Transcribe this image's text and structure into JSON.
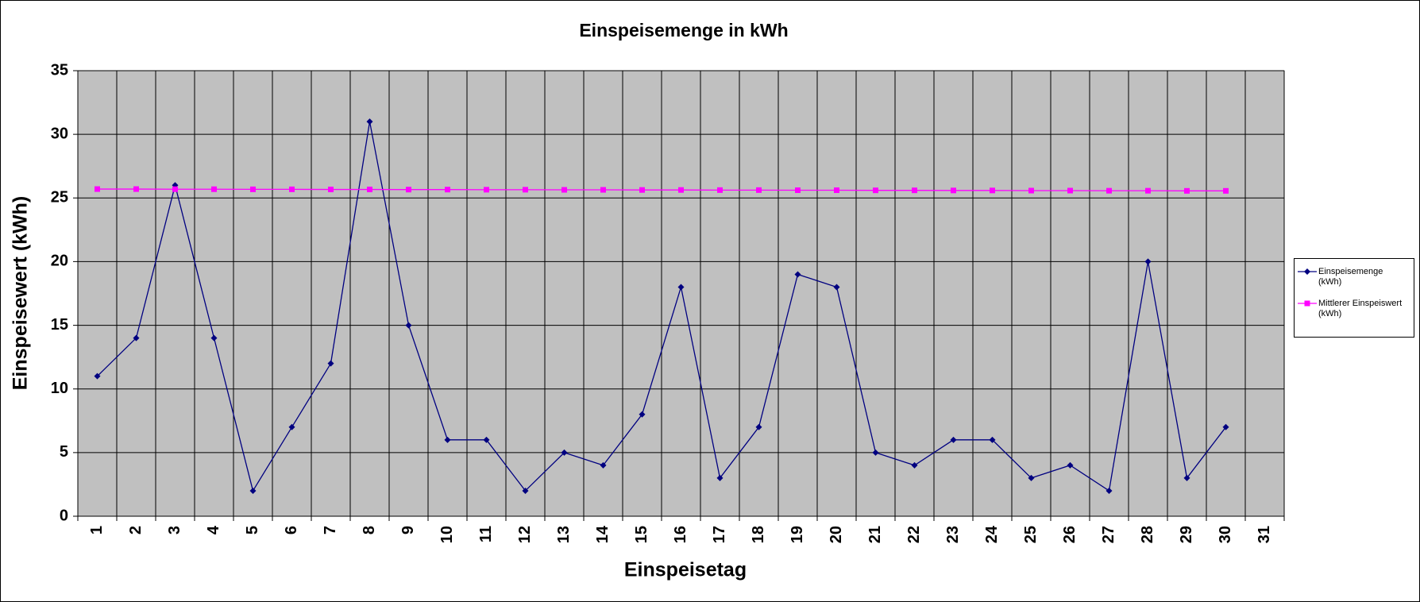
{
  "chart_data": {
    "type": "line",
    "title": "Einspeisemenge in kWh",
    "x_label": "Einspeisetag",
    "y_label": "Einspeisewert  (kWh)",
    "categories": [
      "1",
      "2",
      "3",
      "4",
      "5",
      "6",
      "7",
      "8",
      "9",
      "10",
      "11",
      "12",
      "13",
      "14",
      "15",
      "16",
      "17",
      "18",
      "19",
      "20",
      "21",
      "22",
      "23",
      "24",
      "25",
      "26",
      "27",
      "28",
      "29",
      "30",
      "31"
    ],
    "series": [
      {
        "name": "Einspeisemenge (kWh)",
        "color": "#000080",
        "marker": "diamond",
        "values": [
          11,
          14,
          26,
          14,
          2,
          7,
          12,
          31,
          15,
          6,
          6,
          2,
          5,
          4,
          8,
          18,
          3,
          7,
          19,
          18,
          5,
          4,
          6,
          6,
          3,
          4,
          2,
          20,
          3,
          7,
          null
        ]
      },
      {
        "name": "Mittlerer Einspeiswert (kWh)",
        "color": "#ff00ff",
        "marker": "square",
        "values": [
          25.7,
          25.7,
          25.69,
          25.69,
          25.68,
          25.68,
          25.67,
          25.67,
          25.66,
          25.66,
          25.65,
          25.65,
          25.64,
          25.64,
          25.63,
          25.63,
          25.62,
          25.62,
          25.61,
          25.61,
          25.6,
          25.6,
          25.59,
          25.59,
          25.58,
          25.58,
          25.57,
          25.57,
          25.56,
          25.56,
          null
        ]
      }
    ],
    "ylim": [
      0,
      35
    ],
    "yticks": [
      0,
      5,
      10,
      15,
      20,
      25,
      30,
      35
    ],
    "grid": true,
    "legend": "right",
    "plot_background": "#c0c0c0"
  }
}
